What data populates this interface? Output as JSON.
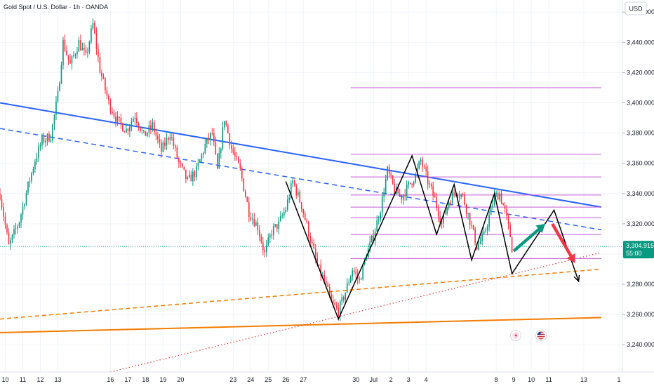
{
  "header": {
    "title": "Gold Spot / U.S. Dollar · 1h · OANDA",
    "currency": "USD"
  },
  "current_price": {
    "value": "3,304.915",
    "countdown": "55:00"
  },
  "colors": {
    "bull": "#089981",
    "bear": "#f23645",
    "trend_blue": "#2962ff",
    "trend_orange": "#f57c00",
    "magenta": "#c55ad6",
    "dotted_red": "#e53935",
    "price_tag": "#089981"
  },
  "chart_data": {
    "type": "candlestick",
    "title": "Gold Spot / U.S. Dollar · 1h · OANDA",
    "y_unit": "USD",
    "y_ticks": [
      3240,
      3260,
      3280,
      3300,
      3320,
      3340,
      3360,
      3380,
      3400,
      3420,
      3440,
      3460
    ],
    "y_tick_labels": [
      "3,240.000",
      "3,260.000",
      "3,280.000",
      "3,300.000",
      "3,320.000",
      "3,340.000",
      "3,360.000",
      "3,380.000",
      "3,400.000",
      "3,420.000",
      "3,440.000",
      "3,460.000"
    ],
    "ylim": [
      3222,
      3468
    ],
    "x_tick_labels": [
      "10",
      "11",
      "12",
      "13",
      "16",
      "17",
      "18",
      "19",
      "20",
      "23",
      "24",
      "25",
      "26",
      "27",
      "30",
      "Jul",
      "2",
      "3",
      "4",
      "8",
      "9",
      "10",
      "11",
      "13",
      "1"
    ],
    "x_tick_days": [
      -4,
      -3,
      -2,
      -1,
      2,
      3,
      4,
      5,
      6,
      9,
      10,
      11,
      12,
      13,
      16,
      17,
      18,
      19,
      20,
      24,
      25,
      26,
      27,
      29,
      31
    ],
    "xlim": [
      -4.3,
      31.2
    ],
    "path_points": [
      [
        -4.3,
        3340
      ],
      [
        -3.8,
        3305
      ],
      [
        -3.2,
        3322
      ],
      [
        -2.7,
        3345
      ],
      [
        -2.3,
        3362
      ],
      [
        -1.9,
        3375
      ],
      [
        -1.4,
        3378
      ],
      [
        -1.0,
        3405
      ],
      [
        -0.7,
        3440
      ],
      [
        -0.3,
        3425
      ],
      [
        0.2,
        3440
      ],
      [
        0.6,
        3430
      ],
      [
        1.0,
        3452
      ],
      [
        1.4,
        3422
      ],
      [
        1.9,
        3400
      ],
      [
        2.4,
        3388
      ],
      [
        2.9,
        3382
      ],
      [
        3.4,
        3392
      ],
      [
        3.9,
        3378
      ],
      [
        4.4,
        3385
      ],
      [
        4.9,
        3368
      ],
      [
        5.4,
        3380
      ],
      [
        5.9,
        3360
      ],
      [
        6.4,
        3348
      ],
      [
        6.9,
        3355
      ],
      [
        7.4,
        3372
      ],
      [
        7.8,
        3380
      ],
      [
        8.1,
        3355
      ],
      [
        8.5,
        3390
      ],
      [
        8.9,
        3370
      ],
      [
        9.4,
        3355
      ],
      [
        9.9,
        3328
      ],
      [
        10.4,
        3318
      ],
      [
        10.8,
        3300
      ],
      [
        11.2,
        3315
      ],
      [
        11.6,
        3320
      ],
      [
        12.0,
        3330
      ],
      [
        12.4,
        3348
      ],
      [
        12.9,
        3332
      ],
      [
        13.4,
        3310
      ],
      [
        13.8,
        3292
      ],
      [
        14.2,
        3282
      ],
      [
        14.6,
        3268
      ],
      [
        15.0,
        3262
      ],
      [
        15.4,
        3275
      ],
      [
        15.8,
        3290
      ],
      [
        16.2,
        3282
      ],
      [
        16.6,
        3300
      ],
      [
        17.0,
        3312
      ],
      [
        17.4,
        3330
      ],
      [
        17.8,
        3355
      ],
      [
        18.2,
        3342
      ],
      [
        18.6,
        3338
      ],
      [
        19.0,
        3345
      ],
      [
        19.4,
        3352
      ],
      [
        19.7,
        3362
      ],
      [
        20.1,
        3348
      ],
      [
        20.5,
        3336
      ],
      [
        20.9,
        3320
      ],
      [
        21.3,
        3335
      ],
      [
        21.7,
        3342
      ],
      [
        22.1,
        3338
      ],
      [
        22.5,
        3322
      ],
      [
        22.9,
        3305
      ],
      [
        23.3,
        3312
      ],
      [
        23.6,
        3325
      ],
      [
        23.9,
        3338
      ],
      [
        24.2,
        3340
      ],
      [
        24.5,
        3328
      ],
      [
        24.8,
        3312
      ],
      [
        25.0,
        3296
      ]
    ],
    "annotations": {
      "zigzag": [
        [
          12.0,
          3348
        ],
        [
          15.0,
          3257
        ],
        [
          19.2,
          3365
        ],
        [
          20.6,
          3313
        ],
        [
          21.6,
          3346
        ],
        [
          22.6,
          3296
        ],
        [
          23.9,
          3340
        ],
        [
          24.9,
          3287
        ],
        [
          27.3,
          3329
        ],
        [
          28.7,
          3282
        ]
      ],
      "green_arrow": [
        [
          25.0,
          3302
        ],
        [
          26.8,
          3320
        ]
      ],
      "red_arrow": [
        [
          27.2,
          3320
        ],
        [
          28.5,
          3294
        ]
      ],
      "horizontal_levels": {
        "x_range": [
          15.7,
          30.0
        ],
        "levels": [
          3410,
          3366,
          3351,
          3339,
          3331,
          3324,
          3313,
          3297
        ]
      },
      "blue_trend": [
        [
          -4.3,
          3400
        ],
        [
          30.0,
          3331
        ]
      ],
      "blue_dashed": [
        [
          -4.3,
          3383
        ],
        [
          30.0,
          3316
        ]
      ],
      "orange_solid": [
        [
          -4.3,
          3248
        ],
        [
          30.0,
          3258
        ]
      ],
      "orange_dashed": [
        [
          -4.3,
          3257
        ],
        [
          30.0,
          3290
        ]
      ],
      "red_dotted": [
        [
          2.0,
          3222
        ],
        [
          30.0,
          3301
        ]
      ],
      "current_line": 3305
    }
  }
}
